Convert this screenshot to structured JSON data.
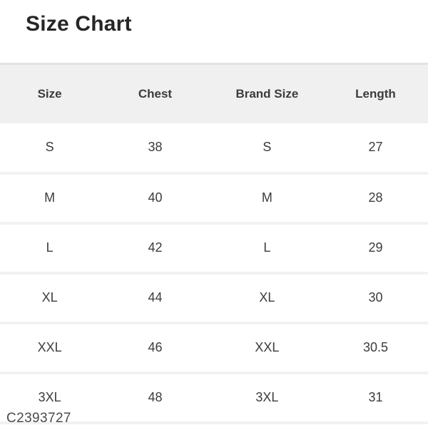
{
  "page": {
    "title": "Size Chart",
    "product_code": "C2393727"
  },
  "table": {
    "columns": [
      "Size",
      "Chest",
      "Brand Size",
      "Length"
    ],
    "rows": [
      [
        "S",
        "38",
        "S",
        "27"
      ],
      [
        "M",
        "40",
        "M",
        "28"
      ],
      [
        "L",
        "42",
        "L",
        "29"
      ],
      [
        "XL",
        "44",
        "XL",
        "30"
      ],
      [
        "XXL",
        "46",
        "XXL",
        "30.5"
      ],
      [
        "3XL",
        "48",
        "3XL",
        "31"
      ]
    ]
  },
  "colors": {
    "header_bg": "#f0f0f0",
    "header_top_border": "#e2e2e2",
    "row_divider": "#f2f2f2",
    "cell_text": "#3c3c3c",
    "title_text": "#262626",
    "code_text": "#4a4a4a",
    "page_bg": "#ffffff"
  }
}
